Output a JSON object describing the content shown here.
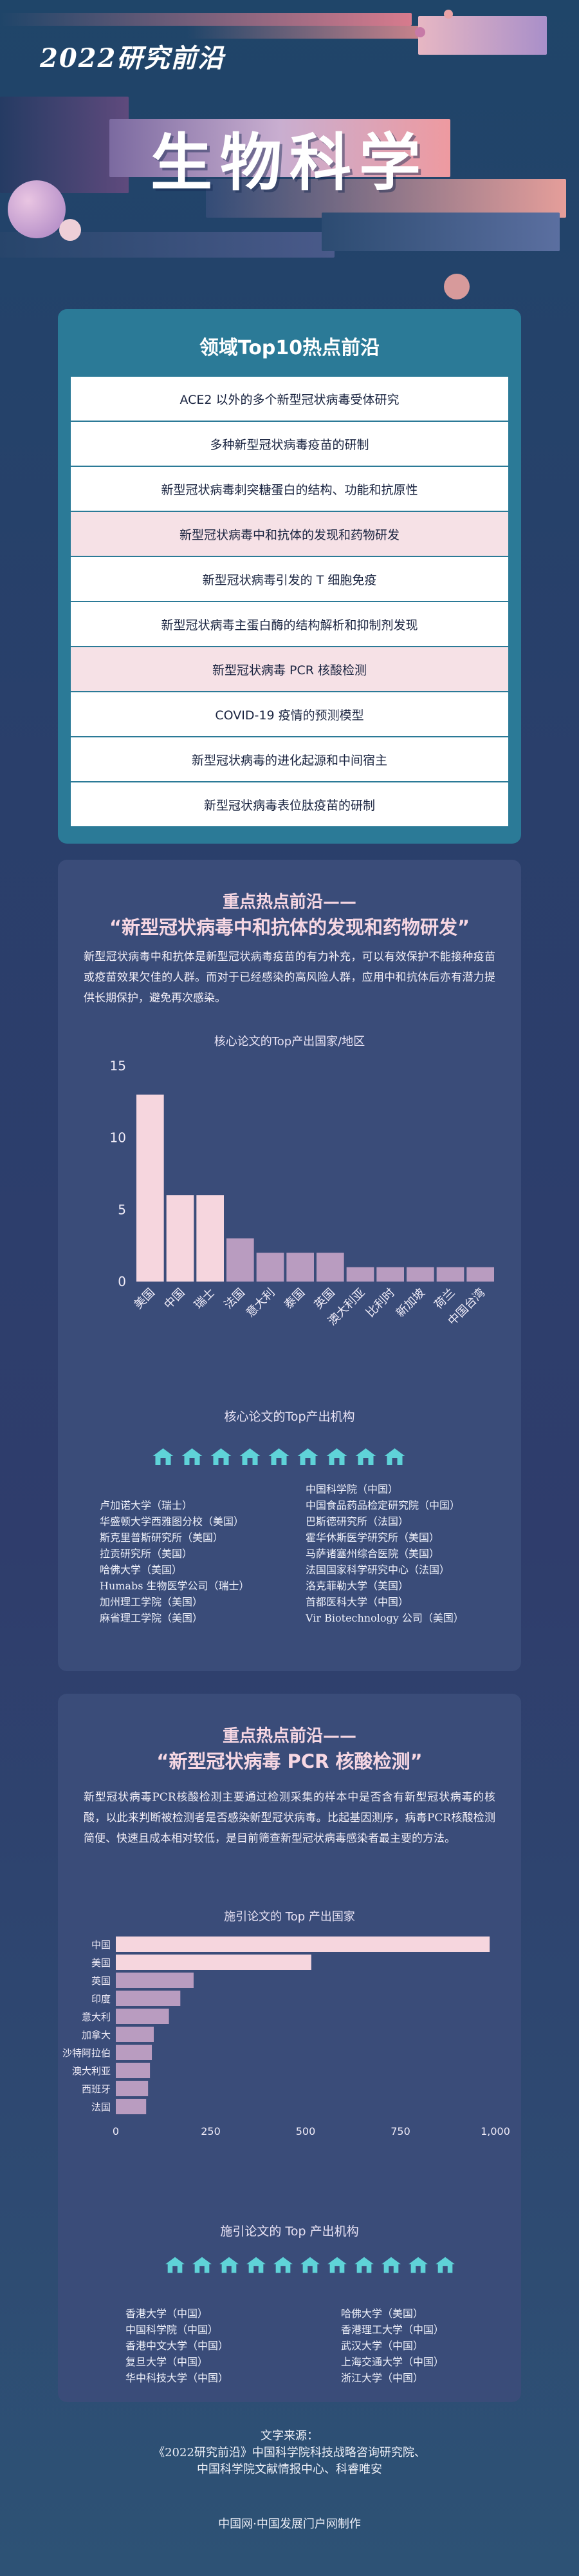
{
  "header": {
    "series_title": "2022研究前沿",
    "main_title": "生物科学"
  },
  "colors": {
    "teal_card": "#2b7a97",
    "pink_accent": "#f6dbe3",
    "bar_pink": "#f6d6de",
    "bar_mauve": "#b99cc0"
  },
  "top10": {
    "title": "领域Top10热点前沿",
    "items": [
      {
        "label": "ACE2 以外的多个新型冠状病毒受体研究",
        "highlight": false
      },
      {
        "label": "多种新型冠状病毒疫苗的研制",
        "highlight": false
      },
      {
        "label": "新型冠状病毒刺突糖蛋白的结构、功能和抗原性",
        "highlight": false
      },
      {
        "label": "新型冠状病毒中和抗体的发现和药物研发",
        "highlight": true
      },
      {
        "label": "新型冠状病毒引发的 T 细胞免疫",
        "highlight": false
      },
      {
        "label": "新型冠状病毒主蛋白酶的结构解析和抑制剂发现",
        "highlight": false
      },
      {
        "label": "新型冠状病毒 PCR 核酸检测",
        "highlight": true
      },
      {
        "label": "COVID-19 疫情的预测模型",
        "highlight": false
      },
      {
        "label": "新型冠状病毒的进化起源和中间宿主",
        "highlight": false
      },
      {
        "label": "新型冠状病毒表位肽疫苗的研制",
        "highlight": false
      }
    ]
  },
  "section1": {
    "heading_line1": "重点热点前沿——",
    "heading_line2": "“新型冠状病毒中和抗体的发现和药物研发”",
    "description": "新型冠状病毒中和抗体是新型冠状病毒疫苗的有力补充，可以有效保护不能接种疫苗或疫苗效果欠佳的人群。而对于已经感染的高风险人群，应用中和抗体后亦有潜力提供长期保护，避免再次感染。",
    "institutions_title": "核心论文的Top产出机构",
    "institutions_left": [
      "卢加诺大学（瑞士）",
      "华盛顿大学西雅图分校（美国）",
      "斯克里普斯研究所（美国）",
      "拉贡研究所（美国）",
      "哈佛大学（美国）",
      "Humabs 生物医学公司（瑞士）",
      "加州理工学院（美国）",
      "麻省理工学院（美国）"
    ],
    "institutions_right": [
      "中国科学院（中国）",
      "中国食品药品检定研究院（中国）",
      "巴斯德研究所（法国）",
      "霍华休斯医学研究所（美国）",
      "马萨诸塞州综合医院（美国）",
      "法国国家科学研究中心（法国）",
      "洛克菲勒大学（美国）",
      "首都医科大学（中国）",
      "Vir Biotechnology 公司（美国）"
    ]
  },
  "section2": {
    "heading_line1": "重点热点前沿——",
    "heading_line2": "“新型冠状病毒 PCR 核酸检测”",
    "description": "新型冠状病毒PCR核酸检测主要通过检测采集的样本中是否含有新型冠状病毒的核酸，以此来判断被检测者是否感染新型冠状病毒。比起基因测序，病毒PCR核酸检测简便、快速且成本相对较低，是目前筛查新型冠状病毒感染者最主要的方法。",
    "institutions_title": "施引论文的 Top 产出机构",
    "institutions_left": [
      "香港大学（中国）",
      "中国科学院（中国）",
      "香港中文大学（中国）",
      "复旦大学（中国）",
      "华中科技大学（中国）"
    ],
    "institutions_right": [
      "哈佛大学（美国）",
      "香港理工大学（中国）",
      "武汉大学（中国）",
      "上海交通大学（中国）",
      "浙江大学（中国）"
    ]
  },
  "chart_data": [
    {
      "type": "bar",
      "title": "核心论文的Top产出国家/地区",
      "categories": [
        "美国",
        "中国",
        "瑞士",
        "法国",
        "意大利",
        "泰国",
        "英国",
        "澳大利亚",
        "比利时",
        "新加坡",
        "荷兰",
        "中国台湾"
      ],
      "values": [
        13,
        6,
        6,
        3,
        2,
        2,
        2,
        1,
        1,
        1,
        1,
        1
      ],
      "highlight_count": 3,
      "ylim": [
        0,
        15
      ],
      "yticks": [
        0,
        5,
        10,
        15
      ],
      "xlabel": "",
      "ylabel": "",
      "grid": false
    },
    {
      "type": "bar",
      "orientation": "horizontal",
      "title": "施引论文的 Top 产出国家",
      "categories": [
        "中国",
        "美国",
        "英国",
        "印度",
        "意大利",
        "加拿大",
        "沙特阿拉伯",
        "澳大利亚",
        "西班牙",
        "法国"
      ],
      "values": [
        985,
        515,
        205,
        170,
        140,
        100,
        95,
        90,
        85,
        80
      ],
      "highlight_count": 2,
      "xlim": [
        0,
        1000
      ],
      "xticks": [
        "0",
        "250",
        "500",
        "750",
        "1,000"
      ],
      "xlabel": "",
      "ylabel": "",
      "grid": false
    }
  ],
  "footer": {
    "source_label": "文字来源：",
    "source_line1": "《2022研究前沿》中国科学院科技战略咨询研究院、",
    "source_line2": "中国科学院文献情报中心、科睿唯安",
    "credit": "中国网·中国发展门户网制作"
  }
}
